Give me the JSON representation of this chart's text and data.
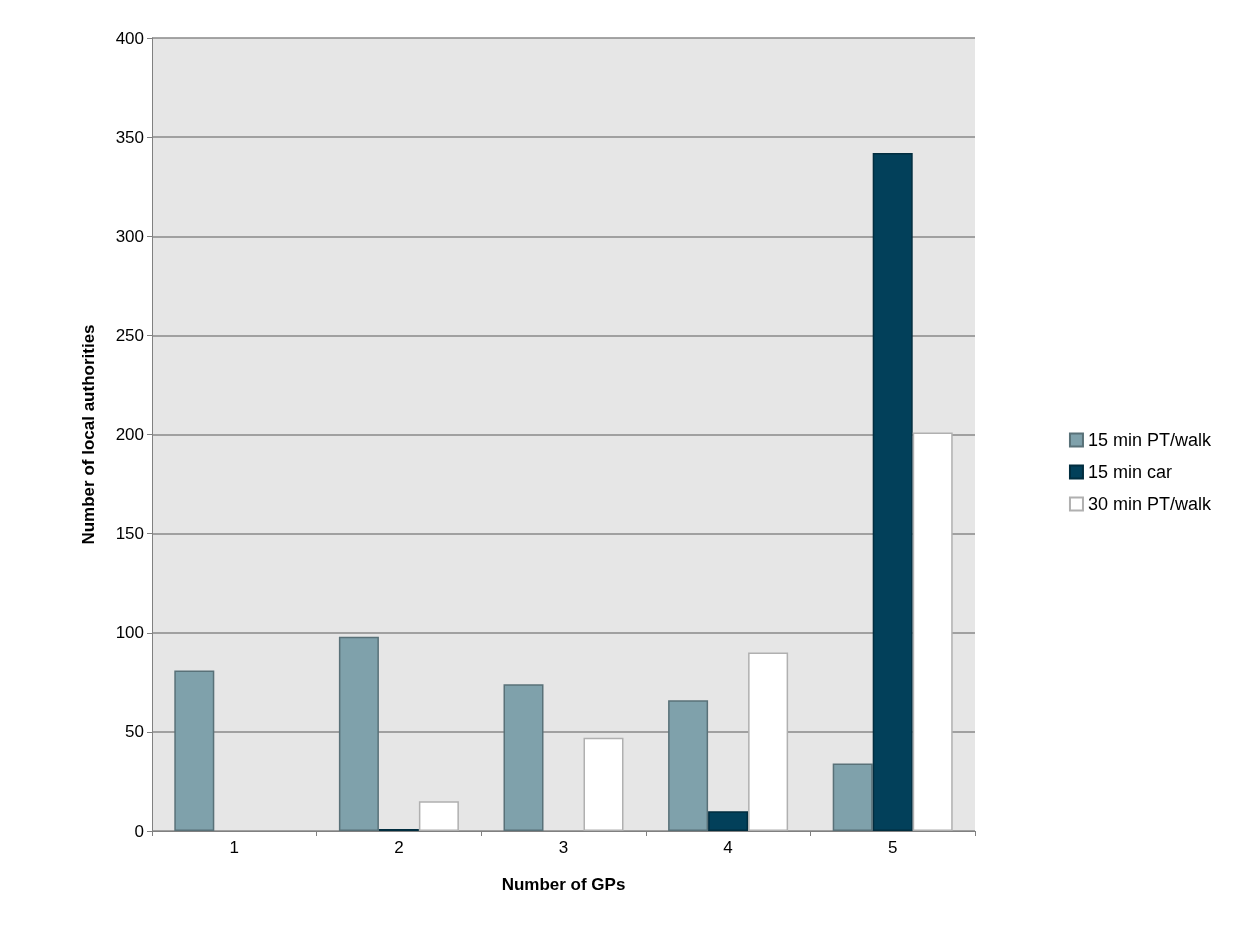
{
  "chart_data": {
    "type": "bar",
    "xlabel": "Number of GPs",
    "ylabel": "Number of local authorities",
    "categories": [
      "1",
      "2",
      "3",
      "4",
      "5"
    ],
    "series": [
      {
        "name": "15 min PT/walk",
        "color": "#7fa1ab",
        "values": [
          81,
          98,
          74,
          66,
          34
        ]
      },
      {
        "name": "15 min car",
        "color": "#02405a",
        "values": [
          0,
          1,
          0,
          10,
          342
        ]
      },
      {
        "name": "30 min PT/walk",
        "color": "#ffffff",
        "values": [
          0,
          15,
          47,
          90,
          201
        ]
      }
    ],
    "ylim": [
      0,
      400
    ],
    "yticks": [
      0,
      50,
      100,
      150,
      200,
      250,
      300,
      350,
      400
    ],
    "grid": "y",
    "legend": "right"
  }
}
